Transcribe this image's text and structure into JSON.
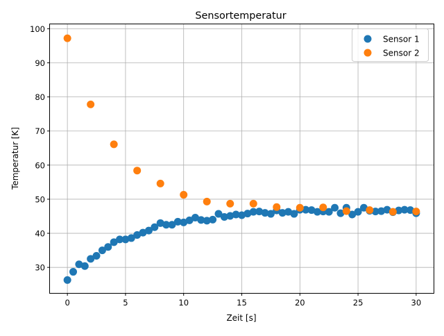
{
  "chart_data": {
    "type": "scatter",
    "title": "Sensortemperatur",
    "xlabel": "Zeit [s]",
    "ylabel": "Temperatur [K]",
    "xlim": [
      -1.5,
      31.5
    ],
    "ylim": [
      22.5,
      101.3
    ],
    "xticks": [
      0,
      5,
      10,
      15,
      20,
      25,
      30
    ],
    "yticks": [
      30,
      40,
      50,
      60,
      70,
      80,
      90,
      100
    ],
    "grid": true,
    "legend_position": "top-right",
    "series": [
      {
        "name": "Sensor 1",
        "color": "#1f77b4",
        "x": [
          0,
          0.5,
          1,
          1.5,
          2,
          2.5,
          3,
          3.5,
          4,
          4.5,
          5,
          5.5,
          6,
          6.5,
          7,
          7.5,
          8,
          8.5,
          9,
          9.5,
          10,
          10.5,
          11,
          11.5,
          12,
          12.5,
          13,
          13.5,
          14,
          14.5,
          15,
          15.5,
          16,
          16.5,
          17,
          17.5,
          18,
          18.5,
          19,
          19.5,
          20,
          20.5,
          21,
          21.5,
          22,
          22.5,
          23,
          23.5,
          24,
          24.5,
          25,
          25.5,
          26,
          26.5,
          27,
          27.5,
          28,
          28.5,
          29,
          29.5,
          30
        ],
        "y": [
          26.3,
          28.7,
          30.9,
          30.4,
          32.5,
          33.4,
          35.0,
          36.0,
          37.4,
          38.2,
          38.2,
          38.6,
          39.5,
          40.2,
          40.8,
          41.8,
          43.0,
          42.5,
          42.5,
          43.4,
          43.2,
          43.8,
          44.6,
          43.9,
          43.7,
          44.0,
          45.7,
          44.8,
          45.1,
          45.5,
          45.3,
          45.8,
          46.3,
          46.4,
          46.0,
          45.7,
          46.7,
          46.0,
          46.3,
          45.7,
          46.9,
          46.9,
          46.8,
          46.3,
          46.4,
          46.3,
          47.5,
          45.9,
          47.5,
          45.5,
          46.3,
          47.5,
          46.6,
          46.4,
          46.5,
          46.9,
          46.2,
          46.7,
          46.9,
          46.8,
          45.9
        ]
      },
      {
        "name": "Sensor 2",
        "color": "#ff7f0e",
        "x": [
          0,
          2,
          4,
          6,
          8,
          10,
          12,
          14,
          16,
          18,
          20,
          22,
          24,
          26,
          28,
          30
        ],
        "y": [
          97.2,
          77.8,
          66.1,
          58.4,
          54.6,
          51.3,
          49.3,
          48.7,
          48.7,
          47.7,
          47.5,
          47.6,
          46.5,
          46.8,
          46.3,
          46.4
        ]
      }
    ]
  }
}
